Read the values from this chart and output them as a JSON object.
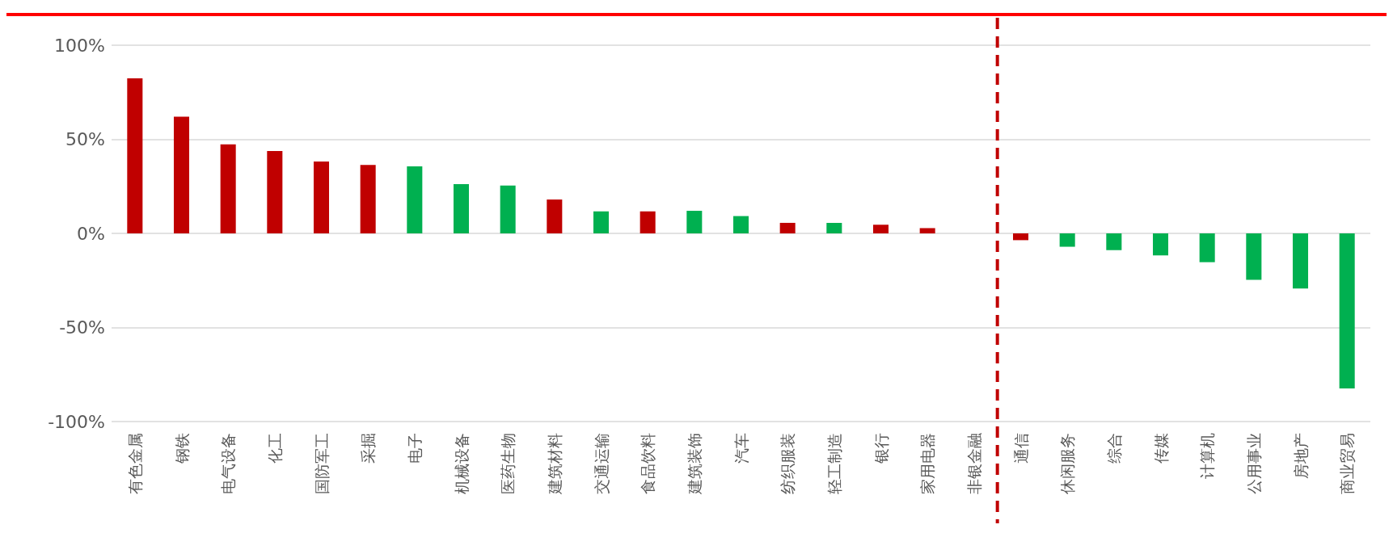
{
  "chart_data": {
    "type": "bar",
    "categories": [
      "有色金属",
      "钢铁",
      "电气设备",
      "化工",
      "国防军工",
      "采掘",
      "电子",
      "机械设备",
      "医药生物",
      "建筑材料",
      "交通运输",
      "食品饮料",
      "建筑装饰",
      "汽车",
      "纺织服装",
      "轻工制造",
      "银行",
      "家用电器",
      "非银金融",
      "通信",
      "休闲服务",
      "综合",
      "传媒",
      "计算机",
      "公用事业",
      "房地产",
      "商业贸易"
    ],
    "values": [
      82.4,
      62,
      47.3,
      43.8,
      38.2,
      36.4,
      35.6,
      26.2,
      25.4,
      18,
      11.7,
      11.7,
      12,
      9.2,
      5.6,
      5.6,
      4.6,
      2.8,
      0,
      -3.6,
      -7.1,
      -8.9,
      -11.7,
      -15.3,
      -24.7,
      -29.3,
      -82.4
    ],
    "colors": [
      "#c00000",
      "#c00000",
      "#c00000",
      "#c00000",
      "#c00000",
      "#c00000",
      "#00b050",
      "#00b050",
      "#00b050",
      "#c00000",
      "#00b050",
      "#c00000",
      "#00b050",
      "#00b050",
      "#c00000",
      "#00b050",
      "#c00000",
      "#c00000",
      "#c00000",
      "#c00000",
      "#00b050",
      "#00b050",
      "#00b050",
      "#00b050",
      "#00b050",
      "#00b050",
      "#00b050"
    ],
    "ylim": [
      -100,
      100
    ],
    "yticks": [
      {
        "value": -100,
        "label": "-100%"
      },
      {
        "value": -50,
        "label": "-50%"
      },
      {
        "value": 0,
        "label": "0%"
      },
      {
        "value": 50,
        "label": "50%"
      },
      {
        "value": 100,
        "label": "100%"
      }
    ],
    "grid": "y",
    "ref_lines": [
      {
        "axis": "x",
        "value": "通信",
        "color": "#c00000",
        "line_style": "dashed"
      }
    ]
  }
}
